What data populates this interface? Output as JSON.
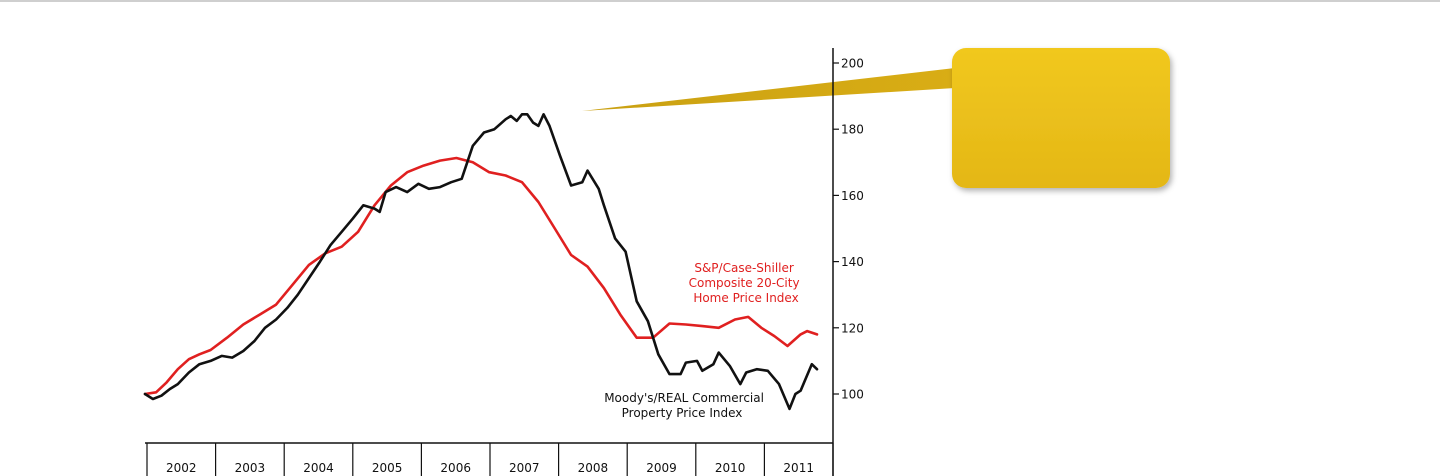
{
  "chart_data": {
    "type": "line",
    "title": "",
    "xlabel": "",
    "ylabel": "",
    "x_tick_labels": [
      "2002",
      "2003",
      "2004",
      "2005",
      "2006",
      "2007",
      "2008",
      "2009",
      "2010",
      "2011"
    ],
    "y_ticks": [
      100,
      120,
      140,
      160,
      180,
      200
    ],
    "y_tick_labels": [
      "100",
      "120",
      "140",
      "160",
      "180",
      "200"
    ],
    "ylim": [
      85,
      204
    ],
    "xlim": [
      2001.0,
      2011.25
    ],
    "grid": false,
    "legend": "inline labels",
    "series": [
      {
        "name": "S&P/Case-Shiller Composite 20-City Home Price Index",
        "label_lines": [
          "S&P/Case-Shiller",
          "Composite 20-City",
          "Home Price Index"
        ],
        "color": "#e02020",
        "points": [
          [
            2001.0,
            100.0
          ],
          [
            2001.17,
            100.5
          ],
          [
            2001.33,
            103.5
          ],
          [
            2001.5,
            107.5
          ],
          [
            2001.67,
            110.5
          ],
          [
            2001.83,
            112.0
          ],
          [
            2002.0,
            113.3
          ],
          [
            2002.25,
            117.0
          ],
          [
            2002.5,
            121.0
          ],
          [
            2002.75,
            124.0
          ],
          [
            2003.0,
            127.0
          ],
          [
            2003.25,
            133.0
          ],
          [
            2003.5,
            139.0
          ],
          [
            2003.75,
            142.5
          ],
          [
            2004.0,
            144.5
          ],
          [
            2004.25,
            149.0
          ],
          [
            2004.5,
            157.0
          ],
          [
            2004.75,
            163.0
          ],
          [
            2005.0,
            167.0
          ],
          [
            2005.25,
            169.0
          ],
          [
            2005.5,
            170.5
          ],
          [
            2005.75,
            171.3
          ],
          [
            2006.0,
            170.0
          ],
          [
            2006.25,
            167.0
          ],
          [
            2006.5,
            166.0
          ],
          [
            2006.75,
            164.0
          ],
          [
            2007.0,
            158.0
          ],
          [
            2007.25,
            150.0
          ],
          [
            2007.5,
            142.0
          ],
          [
            2007.75,
            138.5
          ],
          [
            2008.0,
            132.0
          ],
          [
            2008.25,
            124.0
          ],
          [
            2008.5,
            117.0
          ],
          [
            2008.75,
            117.0
          ],
          [
            2009.0,
            121.3
          ],
          [
            2009.25,
            121.0
          ],
          [
            2009.5,
            120.5
          ],
          [
            2009.75,
            120.0
          ],
          [
            2010.0,
            122.5
          ],
          [
            2010.2,
            123.3
          ],
          [
            2010.4,
            120.0
          ],
          [
            2010.6,
            117.5
          ],
          [
            2010.8,
            114.5
          ],
          [
            2011.0,
            118.0
          ],
          [
            2011.1,
            119.0
          ],
          [
            2011.25,
            118.0
          ]
        ]
      },
      {
        "name": "Moody's/REAL Commercial Property Price Index",
        "label_lines": [
          "Moody's/REAL Commercial",
          "Property Price Index"
        ],
        "color": "#111111",
        "points": [
          [
            2001.0,
            100.0
          ],
          [
            2001.12,
            98.5
          ],
          [
            2001.25,
            99.5
          ],
          [
            2001.38,
            101.5
          ],
          [
            2001.5,
            103.0
          ],
          [
            2001.67,
            106.5
          ],
          [
            2001.83,
            109.0
          ],
          [
            2002.0,
            110.0
          ],
          [
            2002.17,
            111.5
          ],
          [
            2002.33,
            111.0
          ],
          [
            2002.5,
            113.0
          ],
          [
            2002.67,
            116.0
          ],
          [
            2002.83,
            120.0
          ],
          [
            2003.0,
            122.5
          ],
          [
            2003.17,
            126.0
          ],
          [
            2003.33,
            130.0
          ],
          [
            2003.5,
            135.0
          ],
          [
            2003.67,
            140.0
          ],
          [
            2003.83,
            145.0
          ],
          [
            2004.0,
            149.0
          ],
          [
            2004.17,
            153.0
          ],
          [
            2004.33,
            157.0
          ],
          [
            2004.5,
            156.0
          ],
          [
            2004.58,
            155.0
          ],
          [
            2004.67,
            161.0
          ],
          [
            2004.83,
            162.5
          ],
          [
            2005.0,
            161.0
          ],
          [
            2005.17,
            163.5
          ],
          [
            2005.33,
            162.0
          ],
          [
            2005.5,
            162.5
          ],
          [
            2005.67,
            164.0
          ],
          [
            2005.83,
            165.0
          ],
          [
            2006.0,
            175.0
          ],
          [
            2006.17,
            179.0
          ],
          [
            2006.33,
            180.0
          ],
          [
            2006.5,
            183.0
          ],
          [
            2006.58,
            184.0
          ],
          [
            2006.67,
            182.5
          ],
          [
            2006.75,
            184.5
          ],
          [
            2006.83,
            184.5
          ],
          [
            2006.92,
            182.0
          ],
          [
            2007.0,
            181.0
          ],
          [
            2007.08,
            184.5
          ],
          [
            2007.17,
            181.0
          ],
          [
            2007.33,
            172.0
          ],
          [
            2007.5,
            163.0
          ],
          [
            2007.67,
            164.0
          ],
          [
            2007.75,
            167.5
          ],
          [
            2007.92,
            162.0
          ],
          [
            2008.0,
            157.0
          ],
          [
            2008.17,
            147.0
          ],
          [
            2008.33,
            143.0
          ],
          [
            2008.5,
            128.0
          ],
          [
            2008.67,
            122.0
          ],
          [
            2008.83,
            112.0
          ],
          [
            2009.0,
            106.0
          ],
          [
            2009.17,
            106.0
          ],
          [
            2009.25,
            109.5
          ],
          [
            2009.42,
            110.0
          ],
          [
            2009.5,
            107.0
          ],
          [
            2009.67,
            109.0
          ],
          [
            2009.75,
            112.5
          ],
          [
            2009.92,
            108.5
          ],
          [
            2010.08,
            103.0
          ],
          [
            2010.17,
            106.5
          ],
          [
            2010.33,
            107.5
          ],
          [
            2010.5,
            107.0
          ],
          [
            2010.67,
            103.0
          ],
          [
            2010.83,
            95.5
          ],
          [
            2010.92,
            100.0
          ],
          [
            2011.0,
            101.0
          ],
          [
            2011.17,
            109.0
          ],
          [
            2011.25,
            107.5
          ]
        ]
      }
    ]
  }
}
